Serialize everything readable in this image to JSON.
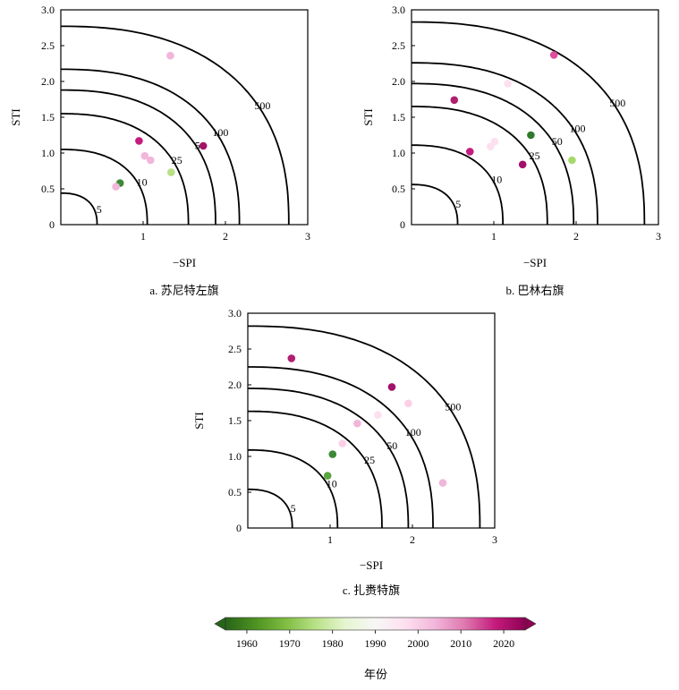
{
  "chart_data": [
    {
      "type": "scatter",
      "panel": "a. 苏尼特左旗",
      "xlabel": "−SPI",
      "ylabel": "STI",
      "xlim": [
        0,
        3
      ],
      "ylim": [
        0,
        3
      ],
      "xticks": [
        "1",
        "2",
        "3"
      ],
      "yticks": [
        "0",
        "0.5",
        "1.0",
        "1.5",
        "2.0",
        "2.5",
        "3.0"
      ],
      "return_period_curves": [
        {
          "label": "5",
          "intercept": 0.44
        },
        {
          "label": "10",
          "intercept": 1.05
        },
        {
          "label": "25",
          "intercept": 1.55
        },
        {
          "label": "50",
          "intercept": 1.88
        },
        {
          "label": "100",
          "intercept": 2.17
        },
        {
          "label": "500",
          "intercept": 2.77
        }
      ],
      "points": [
        {
          "x": 1.33,
          "y": 2.36,
          "color": "#f1b6da"
        },
        {
          "x": 0.95,
          "y": 1.17,
          "color": "#c51b7d"
        },
        {
          "x": 1.02,
          "y": 0.96,
          "color": "#f1b6da"
        },
        {
          "x": 1.09,
          "y": 0.9,
          "color": "#f1b6da"
        },
        {
          "x": 1.34,
          "y": 0.73,
          "color": "#b8e186"
        },
        {
          "x": 1.73,
          "y": 1.1,
          "color": "#a3126a"
        },
        {
          "x": 0.72,
          "y": 0.58,
          "color": "#3c8a35"
        },
        {
          "x": 0.67,
          "y": 0.53,
          "color": "#f1b6da"
        }
      ]
    },
    {
      "type": "scatter",
      "panel": "b. 巴林右旗",
      "xlabel": "−SPI",
      "ylabel": "STI",
      "xlim": [
        0,
        3
      ],
      "ylim": [
        0,
        3
      ],
      "xticks": [
        "1",
        "2",
        "3"
      ],
      "yticks": [
        "0",
        "0.5",
        "1.0",
        "1.5",
        "2.0",
        "2.5",
        "3.0"
      ],
      "return_period_curves": [
        {
          "label": "5",
          "intercept": 0.56
        },
        {
          "label": "10",
          "intercept": 1.11
        },
        {
          "label": "25",
          "intercept": 1.65
        },
        {
          "label": "50",
          "intercept": 1.97
        },
        {
          "label": "100",
          "intercept": 2.26
        },
        {
          "label": "500",
          "intercept": 2.83
        }
      ],
      "points": [
        {
          "x": 1.73,
          "y": 2.37,
          "color": "#de4d9e"
        },
        {
          "x": 1.17,
          "y": 1.97,
          "color": "#fde0ef"
        },
        {
          "x": 0.52,
          "y": 1.74,
          "color": "#b0206f"
        },
        {
          "x": 1.45,
          "y": 1.25,
          "color": "#2f7a2c"
        },
        {
          "x": 1.01,
          "y": 1.16,
          "color": "#fde0ef"
        },
        {
          "x": 0.96,
          "y": 1.09,
          "color": "#fde0ef"
        },
        {
          "x": 0.71,
          "y": 1.02,
          "color": "#c51b7d"
        },
        {
          "x": 1.35,
          "y": 0.84,
          "color": "#a3126a"
        },
        {
          "x": 1.95,
          "y": 0.9,
          "color": "#a6d96a"
        }
      ]
    },
    {
      "type": "scatter",
      "panel": "c. 扎赉特旗",
      "xlabel": "−SPI",
      "ylabel": "STI",
      "xlim": [
        0,
        3
      ],
      "ylim": [
        0,
        3
      ],
      "xticks": [
        "1",
        "2",
        "3"
      ],
      "yticks": [
        "0",
        "0.5",
        "1.0",
        "1.5",
        "2.0",
        "2.5",
        "3.0"
      ],
      "return_period_curves": [
        {
          "label": "5",
          "intercept": 0.54
        },
        {
          "label": "10",
          "intercept": 1.09
        },
        {
          "label": "25",
          "intercept": 1.63
        },
        {
          "label": "50",
          "intercept": 1.95
        },
        {
          "label": "100",
          "intercept": 2.25
        },
        {
          "label": "500",
          "intercept": 2.82
        }
      ],
      "points": [
        {
          "x": 0.53,
          "y": 2.37,
          "color": "#b0206f"
        },
        {
          "x": 1.75,
          "y": 1.97,
          "color": "#a3126a"
        },
        {
          "x": 1.95,
          "y": 1.74,
          "color": "#fbd0e6"
        },
        {
          "x": 1.58,
          "y": 1.58,
          "color": "#fde0ef"
        },
        {
          "x": 1.33,
          "y": 1.46,
          "color": "#f1b6da"
        },
        {
          "x": 1.15,
          "y": 1.18,
          "color": "#fbd0e6"
        },
        {
          "x": 1.03,
          "y": 1.03,
          "color": "#3c8a35"
        },
        {
          "x": 0.97,
          "y": 0.73,
          "color": "#5aa53e"
        },
        {
          "x": 2.37,
          "y": 0.63,
          "color": "#f1b6da"
        }
      ]
    }
  ],
  "colorbar": {
    "title": "年份",
    "ticks": [
      "1960",
      "1970",
      "1980",
      "1990",
      "2000",
      "2010",
      "2020"
    ],
    "colors": [
      "#276419",
      "#4d9221",
      "#7fbc41",
      "#b8e186",
      "#e6f5d0",
      "#f7f7f7",
      "#fde0ef",
      "#f1b6da",
      "#de77ae",
      "#c51b7d",
      "#8e0152"
    ]
  }
}
